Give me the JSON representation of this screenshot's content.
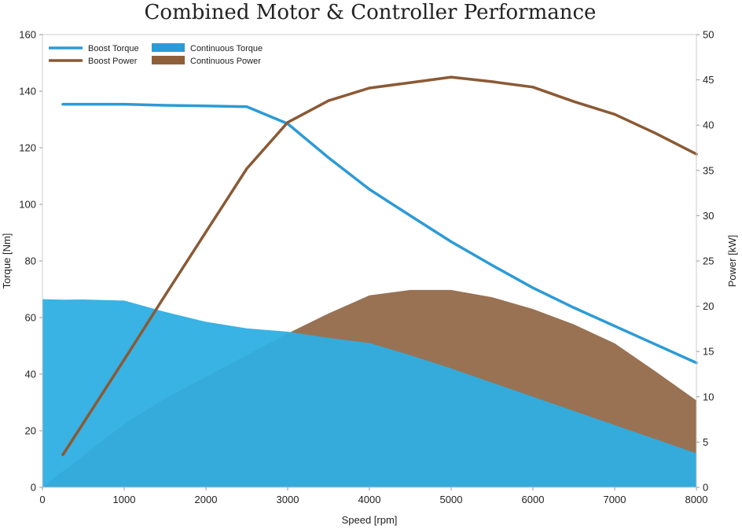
{
  "chart_data": {
    "type": "line",
    "title": "Combined Motor & Controller Performance",
    "xlabel": "Speed [rpm]",
    "ylabel": "Torque [Nm]",
    "y2label": "Power [kW]",
    "xlim": [
      0,
      8000
    ],
    "ylim": [
      0,
      160
    ],
    "y2lim": [
      0,
      50
    ],
    "x_ticks": [
      0,
      1000,
      2000,
      3000,
      4000,
      5000,
      6000,
      7000,
      8000
    ],
    "y_ticks": [
      0,
      20,
      40,
      60,
      80,
      100,
      120,
      140,
      160
    ],
    "y2_ticks": [
      0,
      5,
      10,
      15,
      20,
      25,
      30,
      35,
      40,
      45,
      50
    ],
    "grid": false,
    "legend_position": "top-left",
    "legend": [
      {
        "label": "Boost Torque",
        "kind": "line",
        "color": "#2b9bd6"
      },
      {
        "label": "Continuous Torque",
        "kind": "area",
        "color": "#2b9bd6"
      },
      {
        "label": "Boost Power",
        "kind": "line",
        "color": "#8a5a35"
      },
      {
        "label": "Continuous Power",
        "kind": "area",
        "color": "#8f5f3a"
      }
    ],
    "series": [
      {
        "name": "Continuous Power",
        "type": "area",
        "axis": "y2",
        "color": "#946a4a",
        "x": [
          0,
          500,
          1000,
          1500,
          2000,
          2500,
          3000,
          3500,
          4000,
          4500,
          5000,
          5500,
          6000,
          6500,
          7000,
          7500,
          8000
        ],
        "values": [
          0,
          3.5,
          7.0,
          9.8,
          12.2,
          14.6,
          17.0,
          19.2,
          21.2,
          21.8,
          21.8,
          21.0,
          19.7,
          18.0,
          15.9,
          12.8,
          9.6
        ]
      },
      {
        "name": "Continuous Torque",
        "type": "area",
        "axis": "y",
        "color": "#2eaee3",
        "x": [
          0,
          250,
          500,
          1000,
          1500,
          2000,
          2500,
          3000,
          3500,
          4000,
          4500,
          5000,
          5500,
          6000,
          6500,
          7000,
          7500,
          8000
        ],
        "values": [
          66.5,
          66.3,
          66.4,
          66.0,
          62.0,
          58.5,
          56.2,
          55.0,
          52.8,
          51.0,
          46.7,
          42.0,
          37.0,
          32.0,
          27.0,
          22.0,
          17.0,
          12.0
        ]
      },
      {
        "name": "Boost Torque",
        "type": "line",
        "axis": "y",
        "color": "#2b9bd6",
        "x": [
          250,
          500,
          1000,
          1500,
          2000,
          2500,
          3000,
          3500,
          4000,
          4500,
          5000,
          5500,
          6000,
          6500,
          7000,
          7500,
          8000
        ],
        "values": [
          135.4,
          135.4,
          135.4,
          135.0,
          134.8,
          134.5,
          128.5,
          116.5,
          105.3,
          96.0,
          86.8,
          78.5,
          70.5,
          63.5,
          57.0,
          50.5,
          44.0
        ]
      },
      {
        "name": "Boost Power",
        "type": "line",
        "axis": "y2",
        "color": "#8a5a35",
        "x": [
          250,
          1000,
          1500,
          2000,
          2500,
          3000,
          3500,
          4000,
          4500,
          5000,
          5500,
          6000,
          6500,
          7000,
          7500,
          8000
        ],
        "values": [
          3.6,
          14.1,
          21.2,
          28.2,
          35.2,
          40.3,
          42.7,
          44.1,
          44.7,
          45.3,
          44.8,
          44.2,
          42.6,
          41.2,
          39.1,
          36.8
        ]
      }
    ]
  }
}
